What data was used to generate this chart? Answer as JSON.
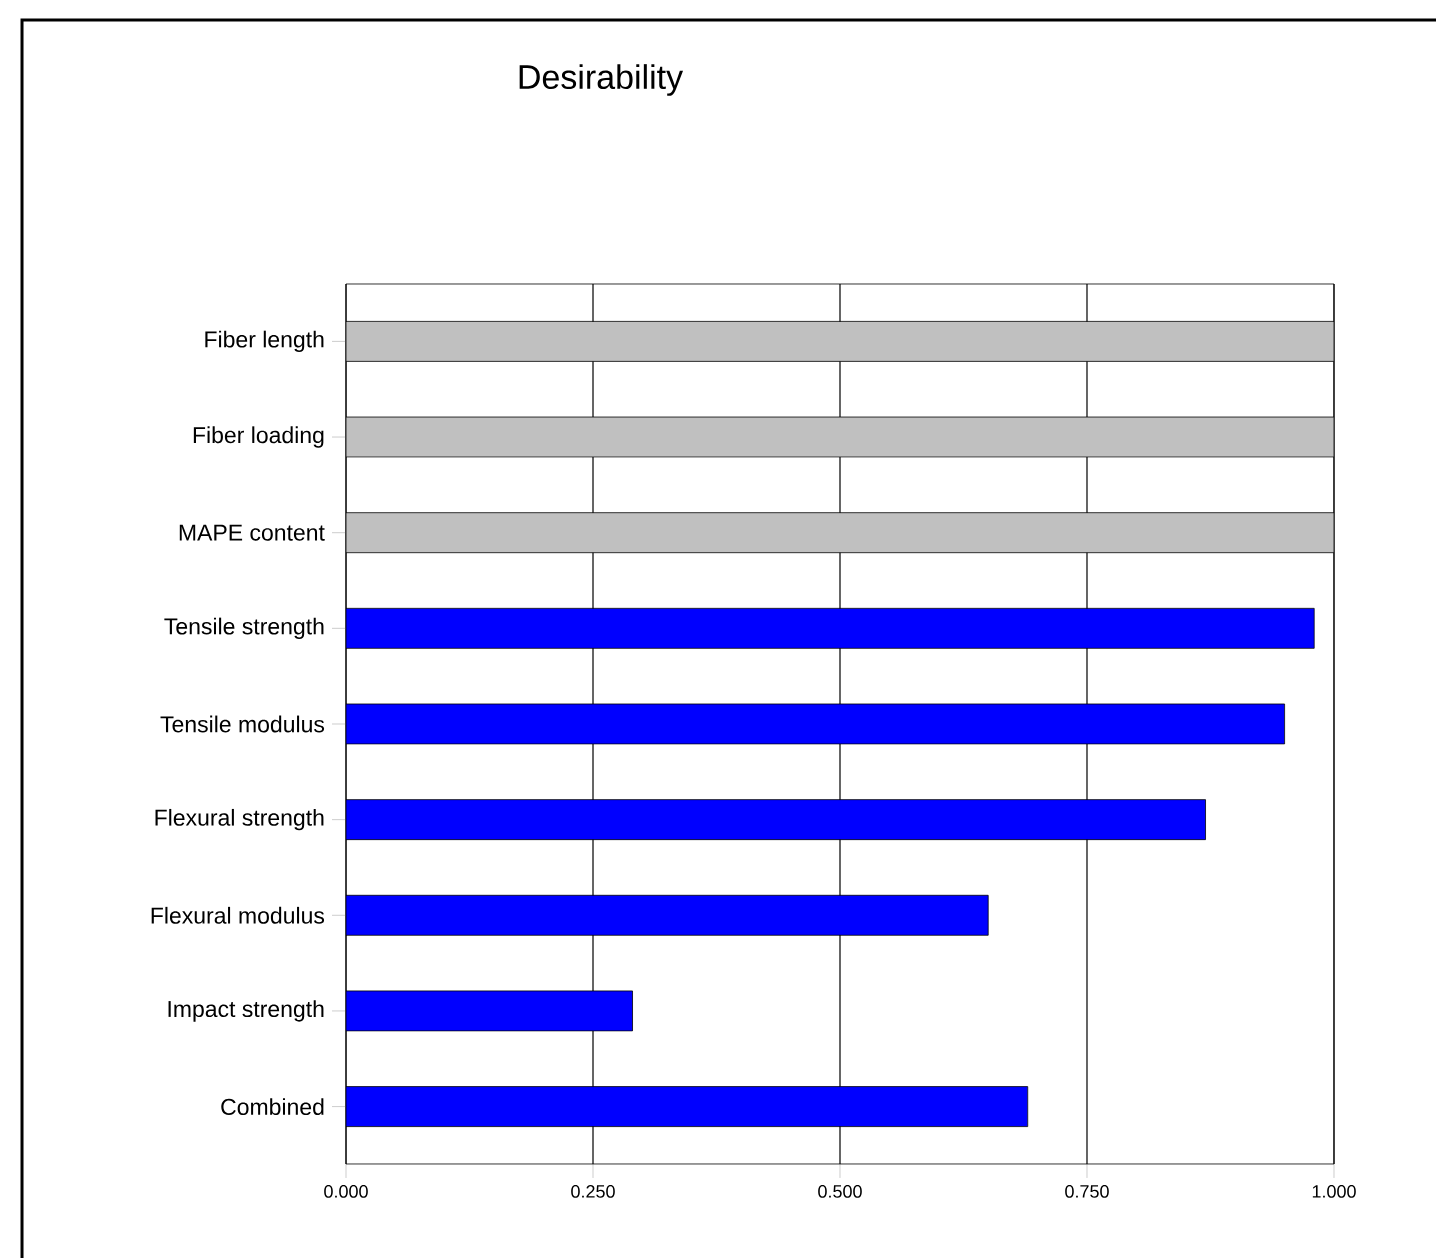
{
  "chart_data": {
    "type": "bar",
    "orientation": "horizontal",
    "title": "Desirability",
    "categories": [
      "Fiber length",
      "Fiber loading",
      "MAPE content",
      "Tensile strength",
      "Tensile modulus",
      "Flexural strength",
      "Flexural modulus",
      "Impact strength",
      "Combined"
    ],
    "values": [
      1,
      1,
      1,
      0.98,
      0.95,
      0.87,
      0.65,
      0.29,
      0.69
    ],
    "colors": [
      "#c0c0c0",
      "#c0c0c0",
      "#c0c0c0",
      "#0000ff",
      "#0000ff",
      "#0000ff",
      "#0000ff",
      "#0000ff",
      "#0000ff"
    ],
    "xlim": [
      0,
      1
    ],
    "xticks": [
      {
        "value": 0,
        "label": "0.000"
      },
      {
        "value": 0.25,
        "label": "0.250"
      },
      {
        "value": 0.5,
        "label": "0.500"
      },
      {
        "value": 0.75,
        "label": "0.750"
      },
      {
        "value": 1,
        "label": "1.000"
      }
    ],
    "grid": "x"
  }
}
